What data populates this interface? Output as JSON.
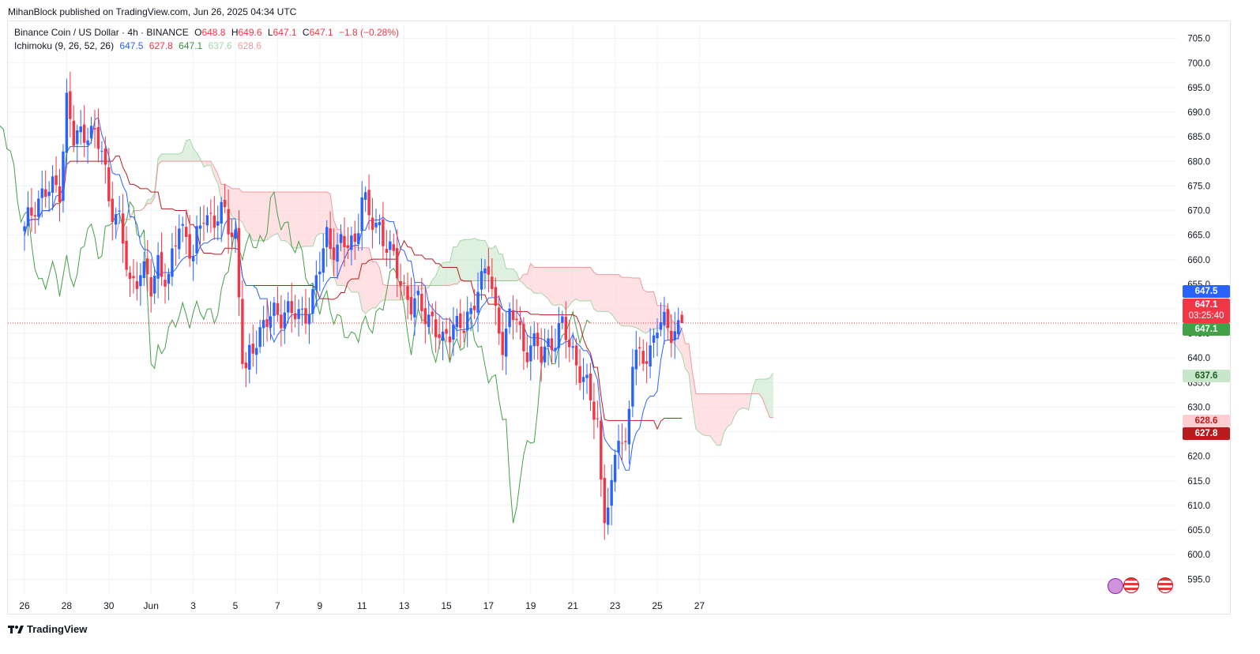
{
  "header": {
    "published": "MihanBlock published on TradingView.com, Jun 26, 2025 04:34 UTC"
  },
  "legend": {
    "symbol": "Binance Coin / US Dollar · 4h · BINANCE",
    "o_label": "O",
    "o_val": "648.8",
    "h_label": "H",
    "h_val": "649.6",
    "l_label": "L",
    "l_val": "647.1",
    "c_label": "C",
    "c_val": "647.1",
    "change": "−1.8 (−0.28%)",
    "indicator": "Ichimoku (9, 26, 52, 26)",
    "ind_vals": [
      "647.5",
      "627.8",
      "647.1",
      "637.6",
      "628.6"
    ]
  },
  "price_tags": {
    "conversion": "647.5",
    "last_price": "647.1",
    "countdown": "03:25:40",
    "lagging": "647.1",
    "span_a": "637.6",
    "span_b": "628.6",
    "base": "627.8"
  },
  "footer": {
    "brand": "TradingView"
  },
  "colors": {
    "up": "#2962ff",
    "down": "#f23645",
    "tenkan": "#2962ff",
    "kijun": "#b71c1c",
    "chikou": "#43a047",
    "cloud_bull": "#c8e6c9",
    "cloud_bear": "#ffcdd2"
  },
  "chart_data": {
    "type": "candlestick",
    "timeframe": "4h",
    "ylim": [
      592,
      708
    ],
    "y_ticks": [
      595,
      600,
      605,
      610,
      615,
      620,
      625,
      630,
      635,
      640,
      645,
      650,
      655,
      660,
      665,
      670,
      675,
      680,
      685,
      690,
      695,
      700,
      705
    ],
    "y_tick_labels": [
      "595.0",
      "600.0",
      "605.0",
      "610.0",
      "615.0",
      "620.0",
      "625.0",
      "630.0",
      "635.0",
      "640.0",
      "645.0",
      "650.0",
      "655.0",
      "660.0",
      "665.0",
      "670.0",
      "675.0",
      "680.0",
      "685.0",
      "690.0",
      "695.0",
      "700.0",
      "705.0"
    ],
    "x_labels": [
      {
        "label": "26",
        "bar": 0
      },
      {
        "label": "28",
        "bar": 12
      },
      {
        "label": "30",
        "bar": 24
      },
      {
        "label": "Jun",
        "bar": 36
      },
      {
        "label": "3",
        "bar": 48
      },
      {
        "label": "5",
        "bar": 60
      },
      {
        "label": "7",
        "bar": 72
      },
      {
        "label": "9",
        "bar": 84
      },
      {
        "label": "11",
        "bar": 96
      },
      {
        "label": "13",
        "bar": 108
      },
      {
        "label": "15",
        "bar": 120
      },
      {
        "label": "17",
        "bar": 132
      },
      {
        "label": "19",
        "bar": 144
      },
      {
        "label": "21",
        "bar": 156
      },
      {
        "label": "23",
        "bar": 168
      },
      {
        "label": "25",
        "bar": 180
      },
      {
        "label": "27",
        "bar": 192
      }
    ],
    "anchors": [
      [
        0,
        665.5
      ],
      [
        3,
        672
      ],
      [
        6,
        673.5
      ],
      [
        10,
        675
      ],
      [
        12,
        692
      ],
      [
        14,
        684
      ],
      [
        18,
        687
      ],
      [
        22,
        682
      ],
      [
        24,
        673
      ],
      [
        27,
        667
      ],
      [
        30,
        655
      ],
      [
        33,
        658
      ],
      [
        36,
        654
      ],
      [
        38,
        660
      ],
      [
        41,
        655
      ],
      [
        44,
        668
      ],
      [
        46,
        665
      ],
      [
        48,
        660
      ],
      [
        51,
        670
      ],
      [
        54,
        668
      ],
      [
        57,
        669
      ],
      [
        60,
        665
      ],
      [
        62,
        640
      ],
      [
        63,
        636
      ],
      [
        64,
        640
      ],
      [
        66,
        645
      ],
      [
        70,
        648
      ],
      [
        74,
        650
      ],
      [
        78,
        648
      ],
      [
        82,
        652
      ],
      [
        86,
        665
      ],
      [
        89,
        662
      ],
      [
        94,
        664
      ],
      [
        96,
        673
      ],
      [
        98,
        668
      ],
      [
        101,
        667
      ],
      [
        104,
        661
      ],
      [
        107,
        656
      ],
      [
        110,
        651
      ],
      [
        113,
        650
      ],
      [
        116,
        648
      ],
      [
        119,
        642
      ],
      [
        122,
        648
      ],
      [
        125,
        646
      ],
      [
        127,
        648
      ],
      [
        129,
        656
      ],
      [
        132,
        658
      ],
      [
        134,
        648
      ],
      [
        136,
        644
      ],
      [
        138,
        648
      ],
      [
        140,
        648
      ],
      [
        142,
        641
      ],
      [
        144,
        644
      ],
      [
        147,
        640
      ],
      [
        150,
        644
      ],
      [
        153,
        646
      ],
      [
        156,
        641
      ],
      [
        158,
        638
      ],
      [
        161,
        631
      ],
      [
        163,
        627
      ],
      [
        164,
        615
      ],
      [
        165,
        609
      ],
      [
        167,
        612
      ],
      [
        169,
        625
      ],
      [
        171,
        622
      ],
      [
        173,
        640
      ],
      [
        175,
        639
      ],
      [
        178,
        642
      ],
      [
        180,
        647
      ],
      [
        182,
        646
      ],
      [
        185,
        646
      ],
      [
        187,
        647.1
      ]
    ],
    "last_bar": {
      "open": 648.8,
      "high": 649.6,
      "low": 647.1,
      "close": 647.1
    },
    "ichimoku": {
      "conversion_line": 647.5,
      "base_line": 627.8,
      "lagging_span": 647.1,
      "leading_span_a": 637.6,
      "leading_span_b": 628.6
    }
  }
}
